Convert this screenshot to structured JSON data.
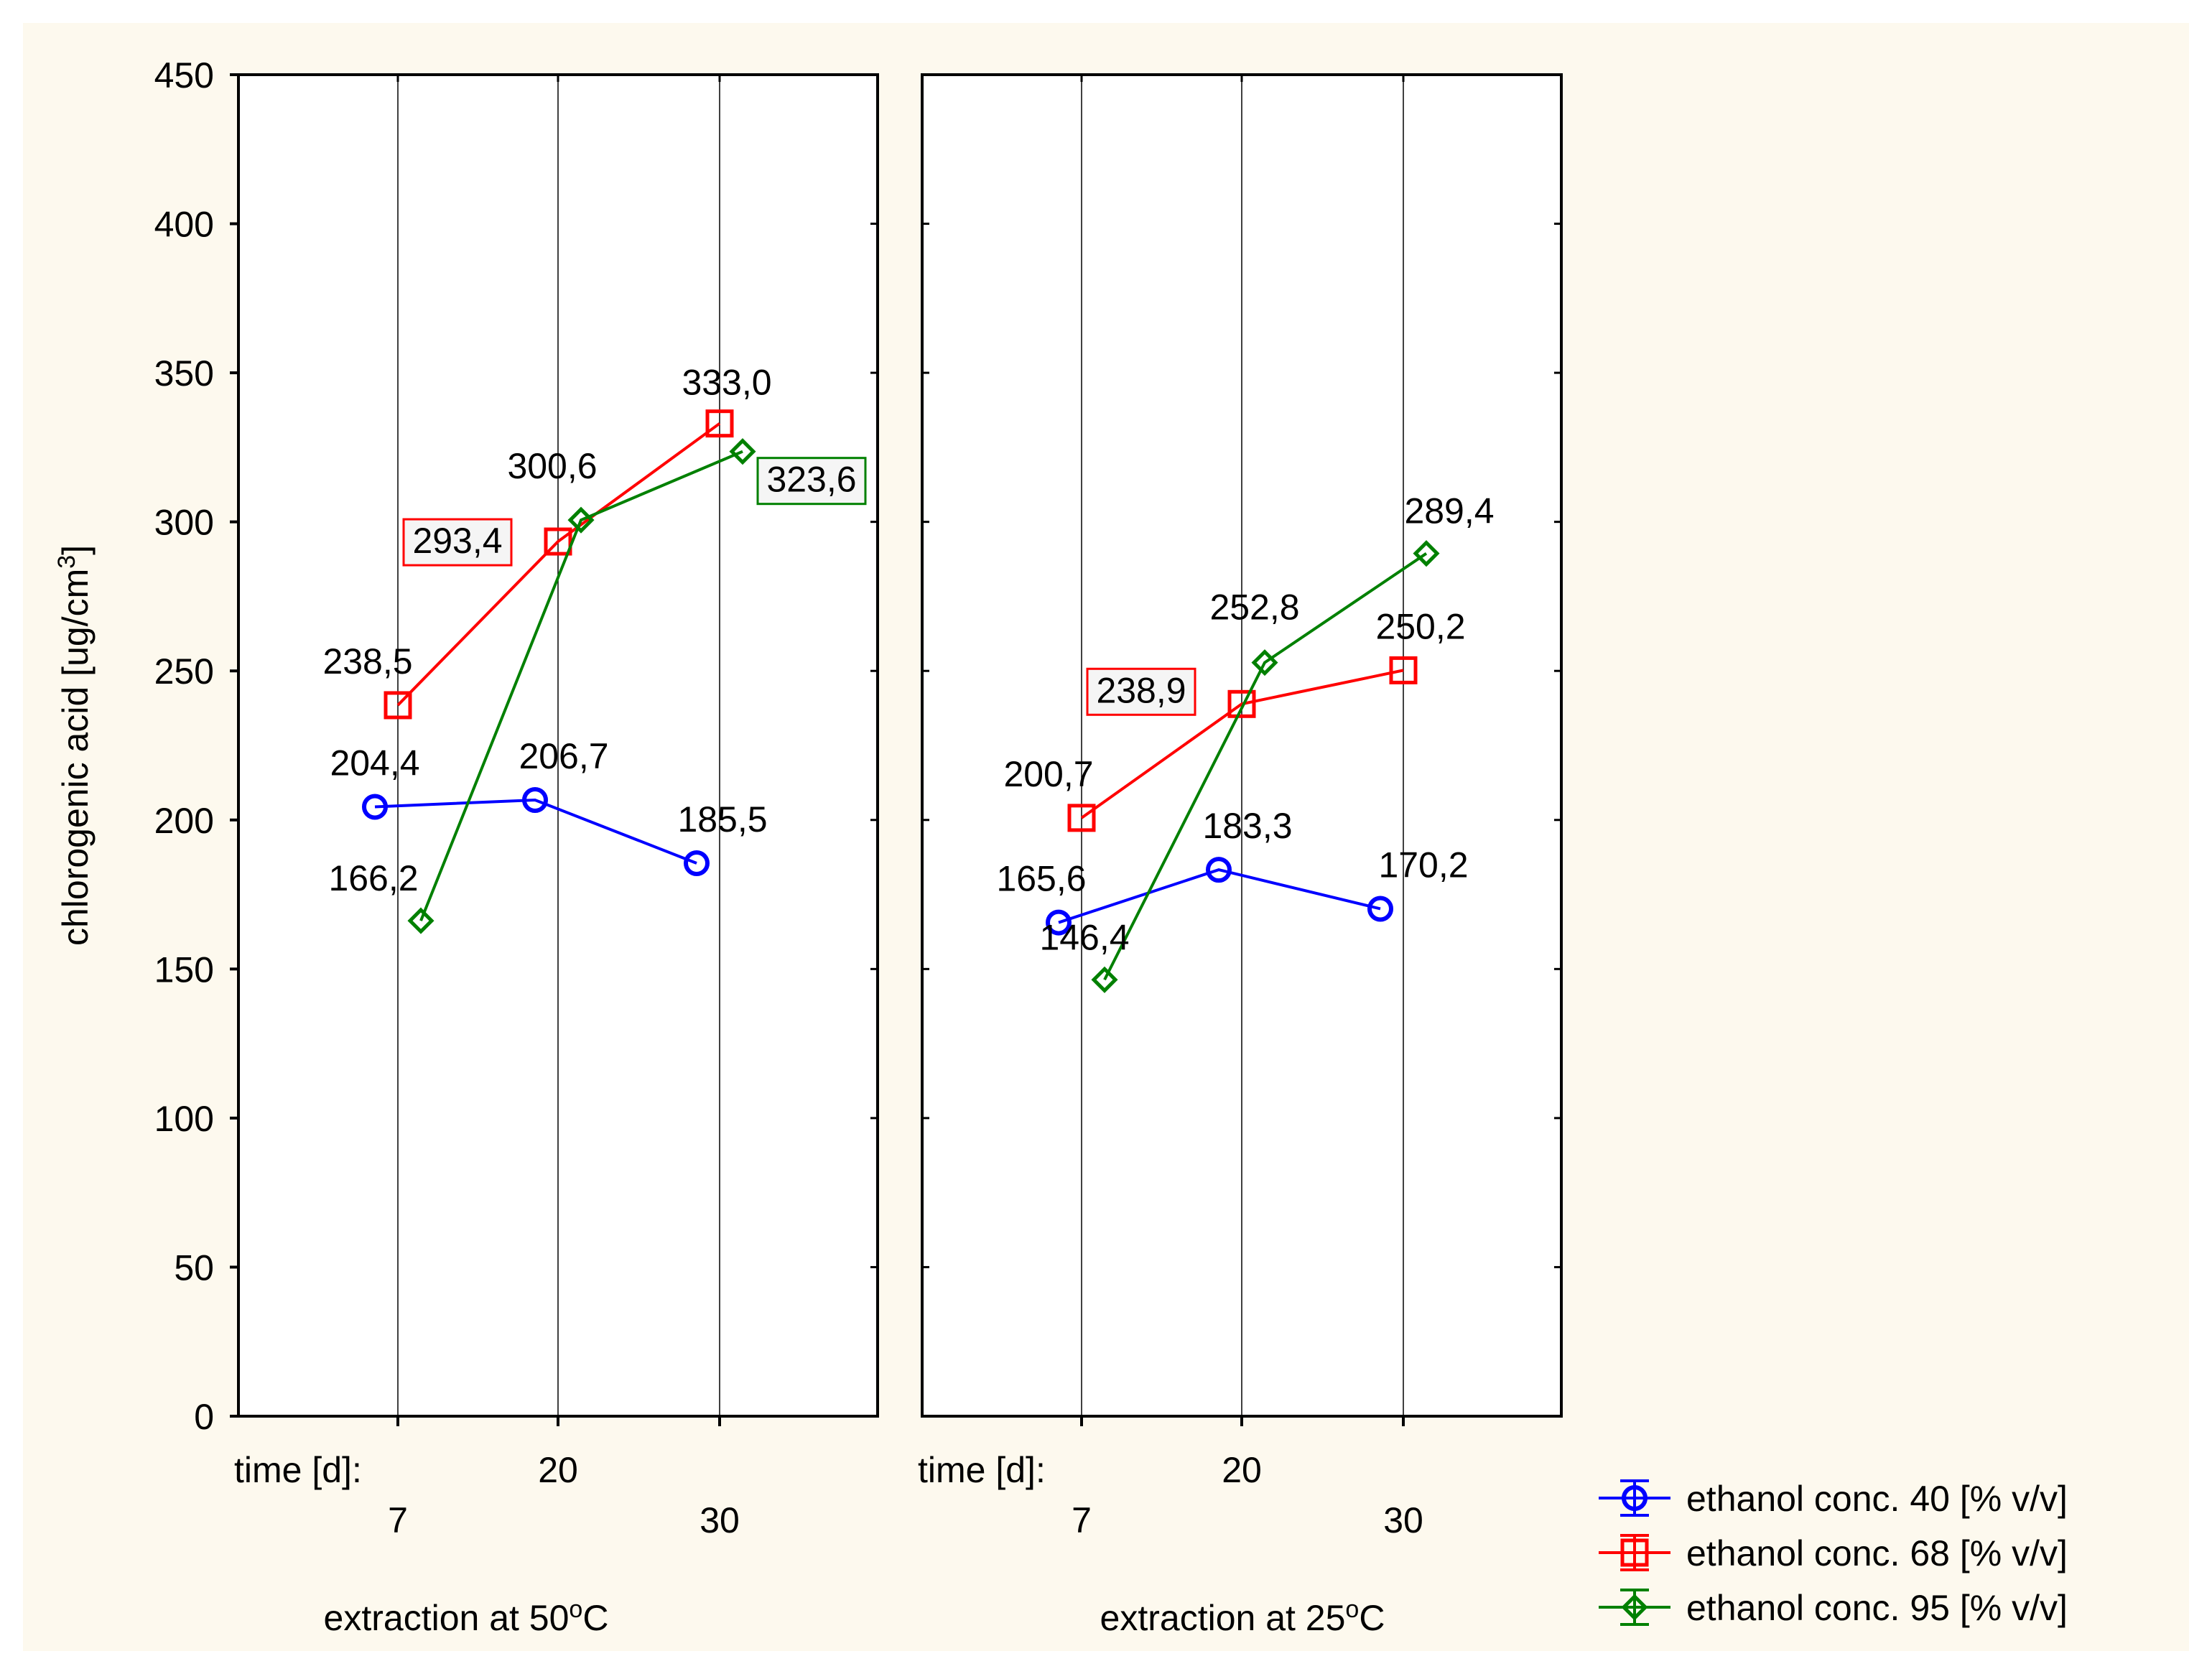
{
  "chart_data": {
    "type": "line",
    "ylabel": "chlorogenic acid [ug/cm",
    "ylabel_sup": "3",
    "ylabel_end": "]",
    "ylim": [
      0,
      450
    ],
    "yticks": [
      "0",
      "50",
      "100",
      "150",
      "200",
      "250",
      "300",
      "350",
      "400",
      "450"
    ],
    "x_prefix": "time [d]:",
    "categories": [
      "7",
      "20",
      "30"
    ],
    "colors": {
      "background": "#fdf9ee",
      "axes": "#000000"
    },
    "panels": [
      {
        "title": "extraction at 50",
        "title_sup": "o",
        "title_end": "C",
        "series": [
          {
            "name": "ethanol conc. 40 [% v/v]",
            "values": [
              204.4,
              206.7,
              185.5
            ],
            "labels": [
              "204,4",
              "206,7",
              "185,5"
            ]
          },
          {
            "name": "ethanol conc. 68 [% v/v]",
            "values": [
              238.5,
              293.4,
              333.0
            ],
            "labels": [
              "238,5",
              "293,4",
              "333,0"
            ]
          },
          {
            "name": "ethanol conc. 95 [% v/v]",
            "values": [
              166.2,
              300.6,
              323.6
            ],
            "labels": [
              "166,2",
              "300,6",
              "323,6"
            ]
          }
        ]
      },
      {
        "title": "extraction at 25",
        "title_sup": "o",
        "title_end": "C",
        "series": [
          {
            "name": "ethanol conc. 40 [% v/v]",
            "values": [
              165.6,
              183.3,
              170.2
            ],
            "labels": [
              "165,6",
              "183,3",
              "170,2"
            ]
          },
          {
            "name": "ethanol conc. 68 [% v/v]",
            "values": [
              200.7,
              238.9,
              250.2
            ],
            "labels": [
              "200,7",
              "238,9",
              "250,2"
            ]
          },
          {
            "name": "ethanol conc. 95 [% v/v]",
            "values": [
              146.4,
              252.8,
              289.4
            ],
            "labels": [
              "146,4",
              "252,8",
              "289,4"
            ]
          }
        ]
      }
    ],
    "legend": {
      "position": "bottom-right",
      "items": [
        {
          "label": "ethanol conc. 40 [% v/v]",
          "color": "#0000ff",
          "marker": "circle"
        },
        {
          "label": "ethanol conc. 68 [% v/v]",
          "color": "#ff0000",
          "marker": "square"
        },
        {
          "label": "ethanol conc. 95 [% v/v]",
          "color": "#008000",
          "marker": "diamond"
        }
      ]
    }
  }
}
